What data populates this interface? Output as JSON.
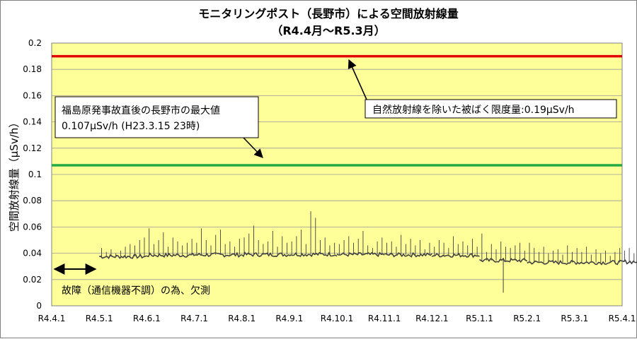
{
  "chart_data": {
    "type": "line",
    "title": "モニタリングポスト（長野市）による空間放射線量",
    "subtitle": "（R4.4月〜R5.3月）",
    "ylabel": "空間放射線量（μSv/h）",
    "xlabel": "",
    "ylim": [
      0,
      0.2
    ],
    "y_ticks": [
      "0",
      "0.02",
      "0.04",
      "0.06",
      "0.08",
      "0.1",
      "0.12",
      "0.14",
      "0.16",
      "0.18",
      "0.2"
    ],
    "x_categories": [
      "R4.4.1",
      "R4.5.1",
      "R4.6.1",
      "R4.7.1",
      "R4.8.1",
      "R4.9.1",
      "R4.10.1",
      "R4.11.1",
      "R4.12.1",
      "R5.1.1",
      "R5.2.1",
      "R5.3.1",
      "R5.4.1"
    ],
    "grid": true,
    "plot_background": "#ffff99",
    "reference_lines": [
      {
        "value": 0.19,
        "color": "#e00000"
      },
      {
        "value": 0.107,
        "color": "#22aa44"
      }
    ],
    "series": [
      {
        "color": "#404040",
        "segments": [
          {
            "month": 1,
            "base": 0.0375,
            "spikes": [
              0.044,
              0.041,
              0.043,
              0.04,
              0.042,
              0.045,
              0.047,
              0.046,
              0.05,
              0.052
            ]
          },
          {
            "month": 2,
            "base": 0.0385,
            "spikes": [
              0.059,
              0.047,
              0.05,
              0.056,
              0.045,
              0.052,
              0.049,
              0.046,
              0.048,
              0.051
            ]
          },
          {
            "month": 3,
            "base": 0.0388,
            "spikes": [
              0.048,
              0.059,
              0.05,
              0.046,
              0.054,
              0.058,
              0.047,
              0.049,
              0.045,
              0.051
            ]
          },
          {
            "month": 4,
            "base": 0.039,
            "spikes": [
              0.052,
              0.055,
              0.061,
              0.05,
              0.047,
              0.049,
              0.057,
              0.045,
              0.053,
              0.048
            ]
          },
          {
            "month": 5,
            "base": 0.0392,
            "spikes": [
              0.049,
              0.053,
              0.058,
              0.047,
              0.072,
              0.067,
              0.05,
              0.052,
              0.046,
              0.048
            ]
          },
          {
            "month": 6,
            "base": 0.039,
            "spikes": [
              0.047,
              0.05,
              0.053,
              0.048,
              0.051,
              0.057,
              0.046,
              0.044,
              0.049,
              0.052
            ]
          },
          {
            "month": 7,
            "base": 0.0388,
            "spikes": [
              0.048,
              0.049,
              0.045,
              0.054,
              0.047,
              0.051,
              0.046,
              0.05,
              0.043,
              0.048
            ]
          },
          {
            "month": 8,
            "base": 0.0385,
            "spikes": [
              0.045,
              0.05,
              0.048,
              0.044,
              0.053,
              0.047,
              0.049,
              0.046,
              0.051,
              0.045
            ]
          },
          {
            "month": 9,
            "base": 0.0345,
            "spikes": [
              0.055,
              0.041,
              0.047,
              0.043,
              0.049,
              0.045,
              0.044,
              0.046,
              0.048,
              0.042
            ]
          },
          {
            "month": 10,
            "base": 0.033,
            "spikes": [
              0.048,
              0.044,
              0.041,
              0.045,
              0.04,
              0.042,
              0.043,
              0.039,
              0.046,
              0.041
            ]
          },
          {
            "month": 11,
            "base": 0.033,
            "spikes": [
              0.044,
              0.041,
              0.045,
              0.039,
              0.043,
              0.04,
              0.042,
              0.038,
              0.041,
              0.044
            ]
          },
          {
            "month": 12,
            "base": 0.0335,
            "spikes": [
              0.042,
              0.044,
              0.04,
              0.046,
              0.052,
              0.041,
              0.049,
              0.043,
              0.045,
              0.04
            ]
          }
        ],
        "min_outlier": {
          "month": 9.5,
          "value": 0.01
        }
      }
    ],
    "annotations": {
      "limit_box": "自然放射線を除いた被ばく限度量:0.19μSv/h",
      "max_box_line1": "福島原発事故直後の長野市の最大値",
      "max_box_line2": "0.107μSv/h (H23.3.15 23時)",
      "outage_note": "故障（通信機器不調）の為、欠測"
    }
  }
}
